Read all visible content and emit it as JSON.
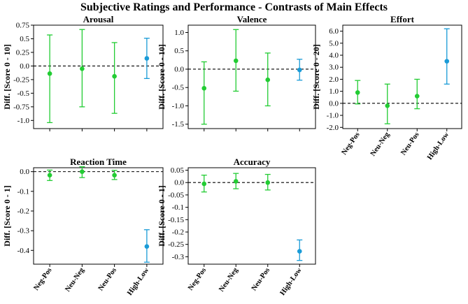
{
  "figure_title": "Subjective Ratings and Performance - Contrasts of Main Effects",
  "colors": {
    "green": "#22cc33",
    "blue": "#1a9bd7"
  },
  "chart_data": [
    {
      "type": "scatter",
      "title": "Arousal",
      "ylabel": "Diff. [Score 0 - 10]",
      "categories": [
        "Neg-Pos",
        "Neu-Neg",
        "Neu-Pos",
        "High-Low"
      ],
      "show_xticklabels": false,
      "ylim": [
        -1.15,
        0.75
      ],
      "yticks": [
        0.75,
        0.5,
        0.25,
        0.0,
        -0.25,
        -0.5,
        -0.75,
        -1.0
      ],
      "ytick_labels": [
        "0.75",
        "0.5",
        "0.25",
        "0.0",
        "-0.25",
        "-0.5",
        "-0.75",
        "-1.0"
      ],
      "zero_line": true,
      "points": [
        {
          "category": "Neg-Pos",
          "estimate": -0.14,
          "ci_low": -1.04,
          "ci_high": 0.57,
          "color": "green"
        },
        {
          "category": "Neu-Neg",
          "estimate": -0.05,
          "ci_low": -0.75,
          "ci_high": 0.67,
          "color": "green"
        },
        {
          "category": "Neu-Pos",
          "estimate": -0.19,
          "ci_low": -0.87,
          "ci_high": 0.43,
          "color": "green"
        },
        {
          "category": "High-Low",
          "estimate": 0.14,
          "ci_low": -0.23,
          "ci_high": 0.51,
          "color": "blue"
        }
      ]
    },
    {
      "type": "scatter",
      "title": "Valence",
      "ylabel": "Diff. [Score 0 - 10]",
      "categories": [
        "Neg-Pos",
        "Neu-Neg",
        "Neu-Pos",
        "High-Low"
      ],
      "show_xticklabels": false,
      "ylim": [
        -1.62,
        1.2
      ],
      "yticks": [
        1.0,
        0.5,
        0.0,
        -0.5,
        -1.0,
        -1.5
      ],
      "ytick_labels": [
        "1.0",
        "0.5",
        "0.0",
        "-0.5",
        "-1.0",
        "-1.5"
      ],
      "zero_line": true,
      "points": [
        {
          "category": "Neg-Pos",
          "estimate": -0.52,
          "ci_low": -1.5,
          "ci_high": 0.2,
          "color": "green"
        },
        {
          "category": "Neu-Neg",
          "estimate": 0.23,
          "ci_low": -0.6,
          "ci_high": 1.08,
          "color": "green"
        },
        {
          "category": "Neu-Pos",
          "estimate": -0.29,
          "ci_low": -1.0,
          "ci_high": 0.44,
          "color": "green"
        },
        {
          "category": "High-Low",
          "estimate": -0.02,
          "ci_low": -0.3,
          "ci_high": 0.27,
          "color": "blue"
        }
      ]
    },
    {
      "type": "scatter",
      "title": "Effort",
      "ylabel": "Diff. [Score 0 - 20]",
      "categories": [
        "Neg-Pos",
        "Neu-Neg",
        "Neu-Pos",
        "High-Low"
      ],
      "show_xticklabels": true,
      "ylim": [
        -2.1,
        6.5
      ],
      "yticks": [
        6.0,
        5.0,
        4.0,
        3.0,
        2.0,
        1.0,
        0.0,
        -1.0,
        -2.0
      ],
      "ytick_labels": [
        "6.0",
        "5.0",
        "4.0",
        "3.0",
        "2.0",
        "1.0",
        "0.0",
        "-1.0",
        "-2.0"
      ],
      "zero_line": true,
      "points": [
        {
          "category": "Neg-Pos",
          "estimate": 0.9,
          "ci_low": -0.05,
          "ci_high": 1.9,
          "color": "green"
        },
        {
          "category": "Neu-Neg",
          "estimate": -0.2,
          "ci_low": -1.7,
          "ci_high": 1.6,
          "color": "green"
        },
        {
          "category": "Neu-Pos",
          "estimate": 0.6,
          "ci_low": -0.45,
          "ci_high": 2.0,
          "color": "green"
        },
        {
          "category": "High-Low",
          "estimate": 3.5,
          "ci_low": 1.6,
          "ci_high": 6.2,
          "color": "blue"
        }
      ]
    },
    {
      "type": "scatter",
      "title": "Reaction Time",
      "ylabel": "Diff. [Score 0 - 1]",
      "categories": [
        "Neg-Pos",
        "Neu-Neg",
        "Neu-Pos",
        "High-Low"
      ],
      "show_xticklabels": true,
      "ylim": [
        -0.47,
        0.02
      ],
      "yticks": [
        0.0,
        -0.1,
        -0.2,
        -0.3,
        -0.4
      ],
      "ytick_labels": [
        "0.0",
        "-0.1",
        "-0.2",
        "-0.3",
        "-0.4"
      ],
      "zero_line": true,
      "points": [
        {
          "category": "Neg-Pos",
          "estimate": -0.018,
          "ci_low": -0.045,
          "ci_high": 0.008,
          "color": "green"
        },
        {
          "category": "Neu-Neg",
          "estimate": 0.0,
          "ci_low": -0.03,
          "ci_high": 0.025,
          "color": "green"
        },
        {
          "category": "Neu-Pos",
          "estimate": -0.018,
          "ci_low": -0.04,
          "ci_high": 0.007,
          "color": "green"
        },
        {
          "category": "High-Low",
          "estimate": -0.38,
          "ci_low": -0.46,
          "ci_high": -0.295,
          "color": "blue"
        }
      ]
    },
    {
      "type": "scatter",
      "title": "Accuracy",
      "ylabel": "Diff. [Score 0 - 1]",
      "categories": [
        "Neg-Pos",
        "Neu-Neg",
        "Neu-Pos",
        "High-Low"
      ],
      "show_xticklabels": true,
      "ylim": [
        -0.33,
        0.06
      ],
      "yticks": [
        0.05,
        0.0,
        -0.05,
        -0.1,
        -0.15,
        -0.2,
        -0.25,
        -0.3
      ],
      "ytick_labels": [
        "0.05",
        "0.0",
        "-0.05",
        "-0.1",
        "-0.15",
        "-0.2",
        "-0.25",
        "-0.3"
      ],
      "zero_line": true,
      "points": [
        {
          "category": "Neg-Pos",
          "estimate": -0.005,
          "ci_low": -0.038,
          "ci_high": 0.03,
          "color": "green"
        },
        {
          "category": "Neu-Neg",
          "estimate": 0.005,
          "ci_low": -0.025,
          "ci_high": 0.037,
          "color": "green"
        },
        {
          "category": "Neu-Pos",
          "estimate": 0.0,
          "ci_low": -0.03,
          "ci_high": 0.033,
          "color": "green"
        },
        {
          "category": "High-Low",
          "estimate": -0.278,
          "ci_low": -0.315,
          "ci_high": -0.232,
          "color": "blue"
        }
      ]
    }
  ]
}
